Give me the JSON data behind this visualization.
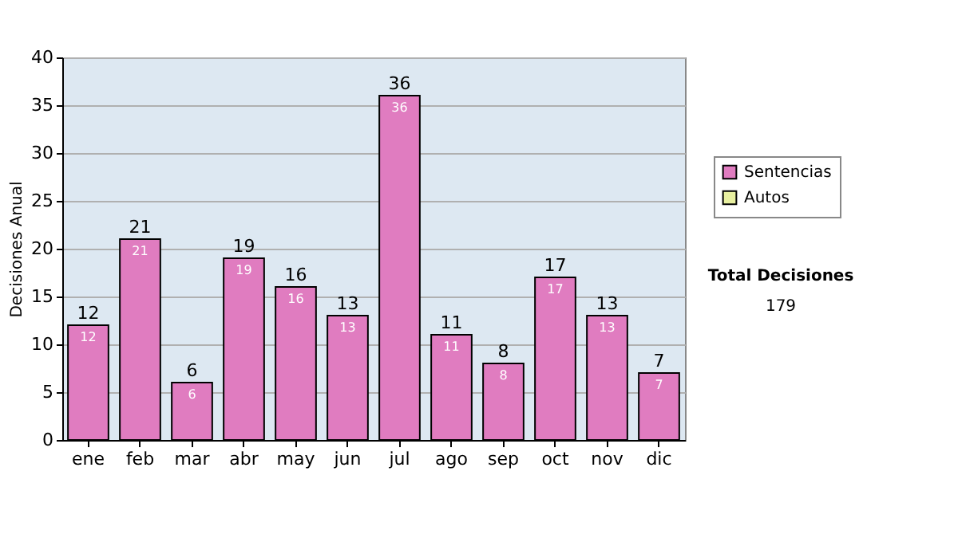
{
  "chart_data": {
    "type": "bar",
    "stacked": true,
    "ylabel": "Decisiones Anual",
    "categories": [
      "ene",
      "feb",
      "mar",
      "abr",
      "may",
      "jun",
      "jul",
      "ago",
      "sep",
      "oct",
      "nov",
      "dic"
    ],
    "series": [
      {
        "name": "Sentencias",
        "color": "#e07cc0",
        "values": [
          12,
          21,
          6,
          19,
          16,
          13,
          36,
          11,
          8,
          17,
          13,
          7
        ]
      },
      {
        "name": "Autos",
        "color": "#e8f0a0",
        "values": [
          null,
          null,
          null,
          null,
          null,
          null,
          null,
          null,
          null,
          null,
          null,
          null
        ]
      }
    ],
    "totals": [
      "12",
      "21",
      "6",
      "19",
      "16",
      "13",
      "36",
      "11",
      "8",
      "17",
      "13",
      "7"
    ],
    "data_labels": true,
    "ylim": [
      0,
      40
    ],
    "yticks": [
      0,
      5,
      10,
      15,
      20,
      25,
      30,
      35,
      40
    ],
    "grid": "y",
    "legend": "right",
    "annotations": [
      "Total Decisiones",
      "179"
    ]
  }
}
